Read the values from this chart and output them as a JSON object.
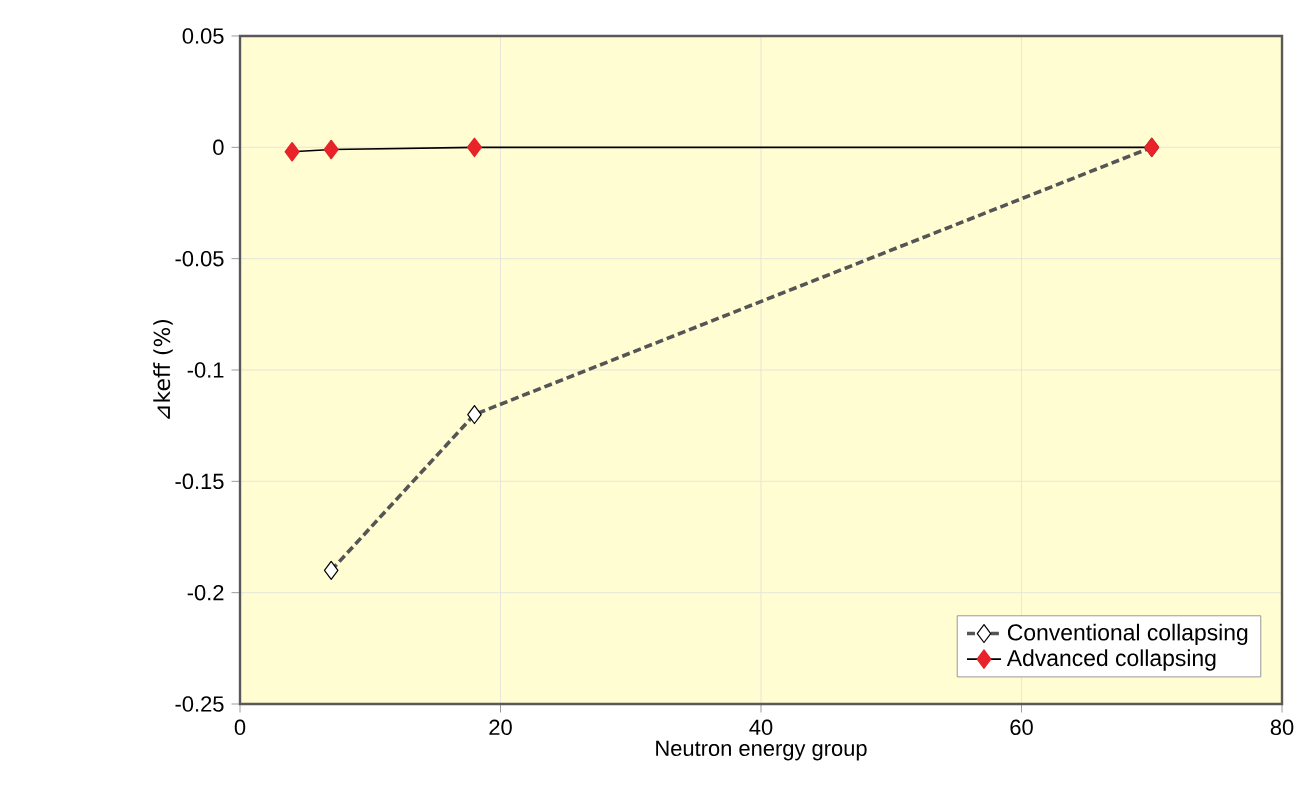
{
  "chart_data": {
    "type": "line",
    "xlabel": "Neutron energy group",
    "ylabel": "⊿keff (%)",
    "xlim": [
      0,
      80
    ],
    "xticks": [
      0,
      20,
      40,
      60,
      80
    ],
    "ylim": [
      -0.25,
      0.05
    ],
    "yticks": [
      -0.25,
      -0.2,
      -0.15,
      -0.1,
      -0.05,
      0,
      0.05
    ],
    "grid": true,
    "legend": "bottom right",
    "series": [
      {
        "name": "Conventional collapsing",
        "color": "#555555",
        "marker": "diamond",
        "line_style": "dashed",
        "x": [
          7,
          18,
          70
        ],
        "values": [
          -0.19,
          -0.12,
          0
        ]
      },
      {
        "name": "Advanced collapsing",
        "color": "#e8232a",
        "marker": "diamond",
        "line_style": "solid",
        "x": [
          4,
          7,
          18,
          70
        ],
        "values": [
          -0.002,
          -0.001,
          0,
          0
        ]
      }
    ]
  }
}
